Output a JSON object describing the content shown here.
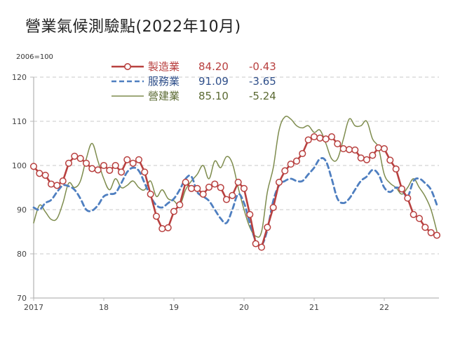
{
  "title": "營業氣候測驗點(2022年10月)",
  "unit_label": "2006=100",
  "colors": {
    "manufacturing": "#b8403f",
    "services": "#4f7fc0",
    "construction": "#7e8c4e",
    "grid": "#c8c8c8",
    "axis": "#b8b8b8"
  },
  "legend": [
    {
      "name": "製造業",
      "value": "84.20",
      "change": "-0.43",
      "color": "#b8403f",
      "style": "line-circle"
    },
    {
      "name": "服務業",
      "value": "91.09",
      "change": "-3.65",
      "color": "#2f4f8a",
      "style": "dashed"
    },
    {
      "name": "營建業",
      "value": "85.10",
      "change": "-5.24",
      "color": "#5b6a33",
      "style": "solid"
    }
  ],
  "chart_data": {
    "type": "line",
    "title": "營業氣候測驗點(2022年10月)",
    "xlabel": "",
    "ylabel": "2006=100",
    "ylim": [
      70,
      120
    ],
    "yticks": [
      70,
      80,
      90,
      100,
      110,
      120
    ],
    "xticks": [
      "2017",
      "18",
      "19",
      "20",
      "21",
      "22"
    ],
    "x_start": "2017-01",
    "x_end": "2022-10",
    "frequency": "monthly",
    "grid": true,
    "legend_position": "top-center",
    "series": [
      {
        "name": "製造業",
        "latest": 84.2,
        "change": -0.43,
        "values": [
          99.8,
          98.2,
          97.8,
          95.8,
          95.5,
          96.5,
          100.5,
          102.1,
          101.6,
          100.5,
          99.3,
          99.0,
          100.0,
          98.9,
          100.0,
          98.5,
          101.3,
          100.5,
          101.3,
          98.5,
          93.5,
          88.5,
          85.7,
          85.9,
          89.6,
          91.1,
          96.2,
          94.8,
          94.8,
          93.5,
          95.1,
          95.8,
          95.0,
          92.3,
          93.2,
          96.2,
          94.8,
          88.9,
          82.3,
          81.5,
          86.0,
          90.5,
          96.2,
          98.8,
          100.3,
          101.0,
          102.7,
          105.8,
          106.5,
          106.2,
          106.0,
          106.5,
          104.9,
          103.8,
          103.6,
          103.5,
          101.7,
          101.3,
          102.3,
          104.0,
          103.8,
          101.2,
          99.2,
          94.7,
          92.6,
          88.9,
          88.0,
          86.0,
          84.8,
          84.2
        ]
      },
      {
        "name": "服務業",
        "latest": 91.09,
        "change": -3.65,
        "values": [
          90.5,
          90.0,
          91.5,
          92.2,
          94.0,
          95.5,
          95.3,
          94.5,
          92.5,
          90.0,
          89.8,
          91.0,
          93.0,
          93.5,
          93.8,
          96.0,
          98.5,
          99.5,
          98.8,
          96.0,
          93.0,
          91.0,
          90.5,
          91.5,
          92.5,
          94.5,
          97.0,
          97.5,
          94.0,
          93.0,
          92.0,
          90.0,
          88.0,
          87.0,
          90.0,
          93.5,
          91.5,
          87.0,
          83.0,
          82.0,
          85.5,
          92.0,
          95.5,
          96.5,
          97.0,
          96.5,
          96.5,
          98.0,
          99.5,
          101.5,
          101.0,
          97.0,
          92.5,
          91.5,
          92.5,
          94.5,
          96.5,
          97.5,
          99.0,
          98.0,
          95.0,
          94.0,
          95.0,
          94.5,
          93.0,
          96.5,
          97.0,
          96.0,
          94.5,
          91.1
        ]
      },
      {
        "name": "營建業",
        "latest": 85.1,
        "change": -5.24,
        "values": [
          87.0,
          91.0,
          89.5,
          87.8,
          88.0,
          91.5,
          96.0,
          95.0,
          96.5,
          101.5,
          105.0,
          101.0,
          97.0,
          94.5,
          97.0,
          95.0,
          95.5,
          96.5,
          95.0,
          94.5,
          96.5,
          93.0,
          94.5,
          92.5,
          92.0,
          91.0,
          94.5,
          96.5,
          98.0,
          100.0,
          97.0,
          101.0,
          99.5,
          102.0,
          100.5,
          95.0,
          90.0,
          86.0,
          84.0,
          85.0,
          94.0,
          99.5,
          108.0,
          111.0,
          110.5,
          109.0,
          108.5,
          109.0,
          107.5,
          108.0,
          105.0,
          101.5,
          101.5,
          106.0,
          110.5,
          109.0,
          109.0,
          110.0,
          106.0,
          104.0,
          98.0,
          96.0,
          95.0,
          93.5,
          95.0,
          97.0,
          95.0,
          93.0,
          90.0,
          85.1
        ]
      }
    ]
  }
}
